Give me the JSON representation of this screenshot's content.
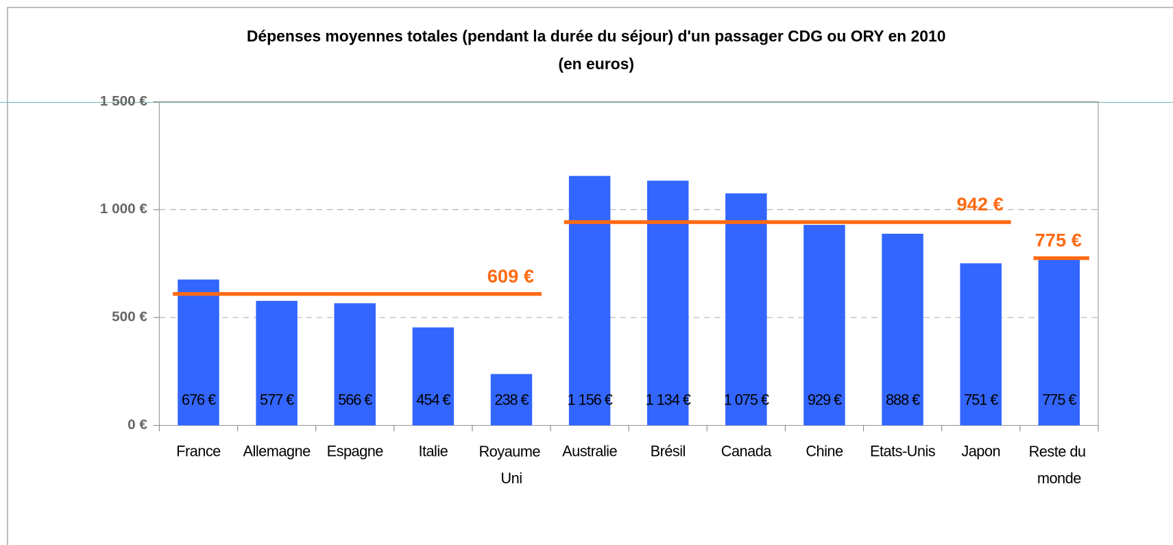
{
  "chart_data": {
    "type": "bar",
    "title": "Dépenses moyennes totales (pendant la durée du séjour) d'un passager CDG ou ORY en 2010",
    "subtitle": "(en euros)",
    "categories": [
      "France",
      "Allemagne",
      "Espagne",
      "Italie",
      "Royaume Uni",
      "Australie",
      "Brésil",
      "Canada",
      "Chine",
      "Etats-Unis",
      "Japon",
      "Reste du monde"
    ],
    "values": [
      676,
      577,
      566,
      454,
      238,
      1156,
      1134,
      1075,
      929,
      888,
      751,
      775
    ],
    "value_labels": [
      "676 €",
      "577 €",
      "566 €",
      "454 €",
      "238 €",
      "1 156 €",
      "1 134 €",
      "1 075 €",
      "929 €",
      "888 €",
      "751 €",
      "775 €"
    ],
    "color": "#3366ff",
    "ylim": [
      0,
      1500
    ],
    "yticks": [
      {
        "value": 0,
        "label": "0 €"
      },
      {
        "value": 500,
        "label": "500 €"
      },
      {
        "value": 1000,
        "label": "1 000 €"
      },
      {
        "value": 1500,
        "label": "1 500 €"
      }
    ],
    "grid": true,
    "averages": [
      {
        "value": 609,
        "label": "609 €",
        "start": 0,
        "end": 4
      },
      {
        "value": 942,
        "label": "942 €",
        "start": 5,
        "end": 10
      },
      {
        "value": 775,
        "label": "775 €",
        "start": 11,
        "end": 11
      }
    ],
    "average_color": "#ff6a13"
  }
}
